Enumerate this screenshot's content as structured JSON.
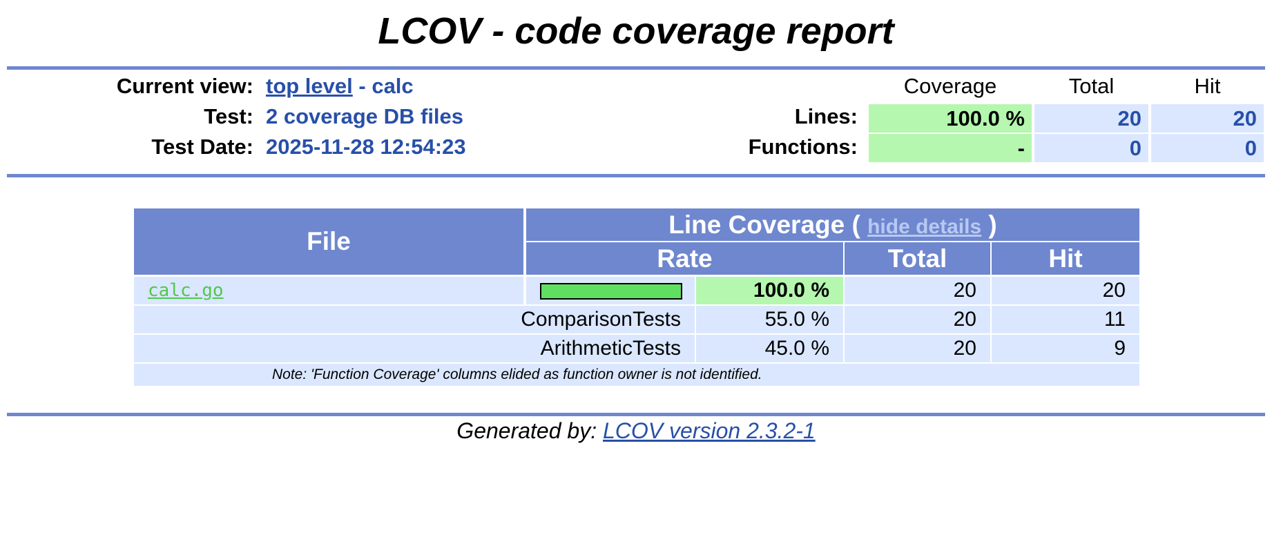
{
  "header": {
    "title": "LCOV - code coverage report",
    "current_view_label": "Current view:",
    "current_view_link": "top level",
    "current_view_rest": "- calc",
    "test_label": "Test:",
    "test_value": "2 coverage DB files",
    "date_label": "Test Date:",
    "date_value": "2025-11-28 12:54:23",
    "summary": {
      "columns": [
        "Coverage",
        "Total",
        "Hit"
      ],
      "rows": [
        {
          "label": "Lines:",
          "coverage": "100.0 %",
          "total": 20,
          "hit": 20
        },
        {
          "label": "Functions:",
          "coverage": "-",
          "total": 0,
          "hit": 0
        }
      ]
    }
  },
  "table": {
    "file_header": "File",
    "line_coverage_open": "Line Coverage (",
    "hide_details": "hide details",
    "line_coverage_close": ")",
    "subheaders": [
      "Rate",
      "Total",
      "Hit"
    ],
    "file_row": {
      "name": "calc.go",
      "rate": {
        "value": 100,
        "label": "100.0 %"
      },
      "total": 20,
      "hit": 20
    },
    "test_rows": [
      {
        "name": "ComparisonTests",
        "rate": "55.0 %",
        "total": 20,
        "hit": 11
      },
      {
        "name": "ArithmeticTests",
        "rate": "45.0 %",
        "total": 20,
        "hit": 9
      }
    ],
    "note": "Note: 'Function Coverage' columns elided as function owner is not identified."
  },
  "footer": {
    "label": "Generated by:",
    "link": "LCOV version 2.3.2-1"
  }
}
